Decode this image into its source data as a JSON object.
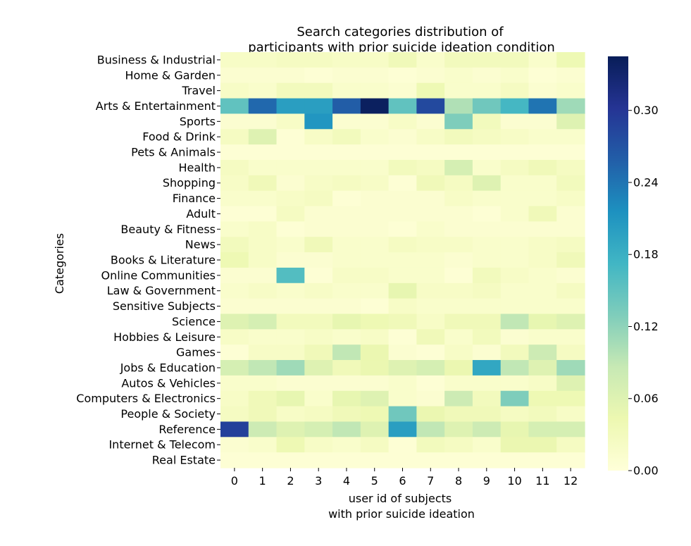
{
  "chart_data": {
    "type": "heatmap",
    "title": [
      "Search categories distribution of",
      "participants with prior suicide ideation condition"
    ],
    "xlabel": [
      "user id of subjects",
      "with prior suicide ideation"
    ],
    "ylabel": "Categories",
    "x_categories": [
      "0",
      "1",
      "2",
      "3",
      "4",
      "5",
      "6",
      "7",
      "8",
      "9",
      "10",
      "11",
      "12"
    ],
    "y_categories": [
      "Business & Industrial",
      "Home & Garden",
      "Travel",
      "Arts & Entertainment",
      "Sports",
      "Food & Drink",
      "Pets & Animals",
      "Health",
      "Shopping",
      "Finance",
      "Adult",
      "Beauty & Fitness",
      "News",
      "Books & Literature",
      "Online Communities",
      "Law & Government",
      "Sensitive Subjects",
      "Science",
      "Hobbies & Leisure",
      "Games",
      "Jobs & Education",
      "Autos & Vehicles",
      "Computers & Electronics",
      "People & Society",
      "Reference",
      "Internet & Telecom",
      "Real Estate"
    ],
    "values": [
      [
        0.02,
        0.02,
        0.025,
        0.025,
        0.02,
        0.02,
        0.035,
        0.015,
        0.03,
        0.03,
        0.03,
        0.015,
        0.04
      ],
      [
        0.01,
        0.01,
        0.01,
        0.005,
        0.01,
        0.01,
        0.005,
        0.01,
        0.015,
        0.01,
        0.015,
        0.005,
        0.01
      ],
      [
        0.02,
        0.015,
        0.03,
        0.03,
        0.015,
        0.015,
        0.01,
        0.04,
        0.015,
        0.015,
        0.025,
        0.01,
        0.015
      ],
      [
        0.15,
        0.25,
        0.2,
        0.2,
        0.26,
        0.34,
        0.15,
        0.28,
        0.1,
        0.14,
        0.17,
        0.24,
        0.11
      ],
      [
        0.01,
        0.01,
        0.02,
        0.21,
        0.01,
        0.01,
        0.02,
        0.01,
        0.13,
        0.03,
        0.01,
        0.01,
        0.06
      ],
      [
        0.025,
        0.06,
        0.005,
        0.02,
        0.03,
        0.015,
        0.01,
        0.02,
        0.03,
        0.025,
        0.02,
        0.015,
        0.015
      ],
      [
        0.005,
        0.005,
        0.005,
        0.005,
        0.005,
        0.005,
        0.005,
        0.005,
        0.005,
        0.005,
        0.005,
        0.005,
        0.005
      ],
      [
        0.025,
        0.015,
        0.015,
        0.015,
        0.015,
        0.015,
        0.03,
        0.025,
        0.07,
        0.015,
        0.025,
        0.035,
        0.025
      ],
      [
        0.02,
        0.035,
        0.01,
        0.02,
        0.025,
        0.02,
        0.005,
        0.035,
        0.025,
        0.06,
        0.015,
        0.015,
        0.03
      ],
      [
        0.015,
        0.015,
        0.02,
        0.025,
        0.005,
        0.01,
        0.01,
        0.01,
        0.02,
        0.015,
        0.015,
        0.015,
        0.02
      ],
      [
        0.005,
        0.005,
        0.025,
        0.01,
        0.01,
        0.01,
        0.01,
        0.01,
        0.01,
        0.005,
        0.015,
        0.035,
        0.01
      ],
      [
        0.015,
        0.02,
        0.005,
        0.01,
        0.01,
        0.01,
        0.005,
        0.015,
        0.01,
        0.01,
        0.01,
        0.01,
        0.01
      ],
      [
        0.03,
        0.02,
        0.015,
        0.035,
        0.015,
        0.015,
        0.025,
        0.02,
        0.02,
        0.015,
        0.015,
        0.02,
        0.025
      ],
      [
        0.04,
        0.02,
        0.01,
        0.01,
        0.015,
        0.015,
        0.015,
        0.015,
        0.01,
        0.015,
        0.015,
        0.02,
        0.035
      ],
      [
        0.01,
        0.01,
        0.16,
        0.005,
        0.02,
        0.02,
        0.015,
        0.015,
        0.005,
        0.03,
        0.02,
        0.015,
        0.01
      ],
      [
        0.015,
        0.02,
        0.015,
        0.02,
        0.015,
        0.015,
        0.05,
        0.02,
        0.02,
        0.025,
        0.015,
        0.015,
        0.025
      ],
      [
        0.01,
        0.01,
        0.01,
        0.01,
        0.01,
        0.005,
        0.02,
        0.015,
        0.015,
        0.015,
        0.015,
        0.015,
        0.015
      ],
      [
        0.06,
        0.07,
        0.03,
        0.03,
        0.05,
        0.04,
        0.035,
        0.02,
        0.035,
        0.035,
        0.09,
        0.05,
        0.06
      ],
      [
        0.02,
        0.015,
        0.015,
        0.02,
        0.015,
        0.02,
        0.005,
        0.035,
        0.015,
        0.03,
        0.01,
        0.015,
        0.015
      ],
      [
        0.005,
        0.02,
        0.02,
        0.035,
        0.09,
        0.045,
        0.01,
        0.005,
        0.02,
        0.01,
        0.03,
        0.08,
        0.025
      ],
      [
        0.07,
        0.09,
        0.11,
        0.06,
        0.035,
        0.045,
        0.06,
        0.07,
        0.045,
        0.19,
        0.09,
        0.06,
        0.11
      ],
      [
        0.015,
        0.015,
        0.01,
        0.01,
        0.01,
        0.01,
        0.015,
        0.005,
        0.015,
        0.015,
        0.015,
        0.02,
        0.06
      ],
      [
        0.02,
        0.035,
        0.05,
        0.015,
        0.05,
        0.06,
        0.015,
        0.01,
        0.08,
        0.03,
        0.13,
        0.04,
        0.04
      ],
      [
        0.025,
        0.035,
        0.02,
        0.025,
        0.035,
        0.04,
        0.14,
        0.045,
        0.035,
        0.035,
        0.025,
        0.03,
        0.02
      ],
      [
        0.29,
        0.08,
        0.06,
        0.07,
        0.09,
        0.06,
        0.2,
        0.09,
        0.06,
        0.08,
        0.05,
        0.07,
        0.07
      ],
      [
        0.01,
        0.015,
        0.04,
        0.02,
        0.015,
        0.025,
        0.005,
        0.03,
        0.025,
        0.015,
        0.045,
        0.045,
        0.025
      ],
      [
        0.005,
        0.005,
        0.005,
        0.005,
        0.005,
        0.005,
        0.005,
        0.005,
        0.005,
        0.005,
        0.005,
        0.005,
        0.005
      ]
    ],
    "colorbar": {
      "ticks": [
        0.0,
        0.06,
        0.12,
        0.18,
        0.24,
        0.3
      ],
      "tick_labels": [
        "0.00",
        "0.06",
        "0.12",
        "0.18",
        "0.24",
        "0.30"
      ],
      "range": [
        0.0,
        0.345
      ]
    },
    "colormap": "YlGnBu",
    "colormap_stops": [
      "#ffffd9",
      "#edf8b1",
      "#c7e9b4",
      "#7fcdbb",
      "#41b6c4",
      "#1d91c0",
      "#225ea8",
      "#253494",
      "#081d58"
    ],
    "grid": false,
    "legend": "colorbar-right"
  }
}
